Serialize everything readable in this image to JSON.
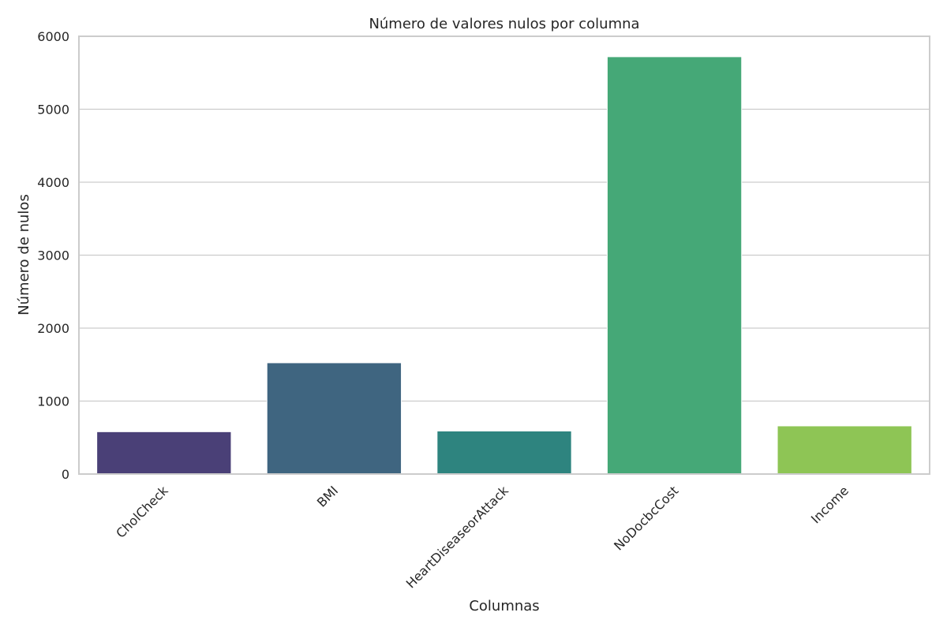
{
  "chart_data": {
    "type": "bar",
    "title": "Número de valores nulos por columna",
    "xlabel": "Columnas",
    "ylabel": "Número de nulos",
    "categories": [
      "CholCheck",
      "BMI",
      "HeartDiseaseorAttack",
      "NoDocbcCost",
      "Income"
    ],
    "values": [
      580,
      1525,
      590,
      5720,
      660
    ],
    "colors": [
      "#4a4077",
      "#3f6580",
      "#2e847f",
      "#45a877",
      "#8ec555"
    ],
    "ylim": [
      0,
      6000
    ],
    "yticks": [
      0,
      1000,
      2000,
      3000,
      4000,
      5000,
      6000
    ],
    "grid": true,
    "legend": "none"
  }
}
